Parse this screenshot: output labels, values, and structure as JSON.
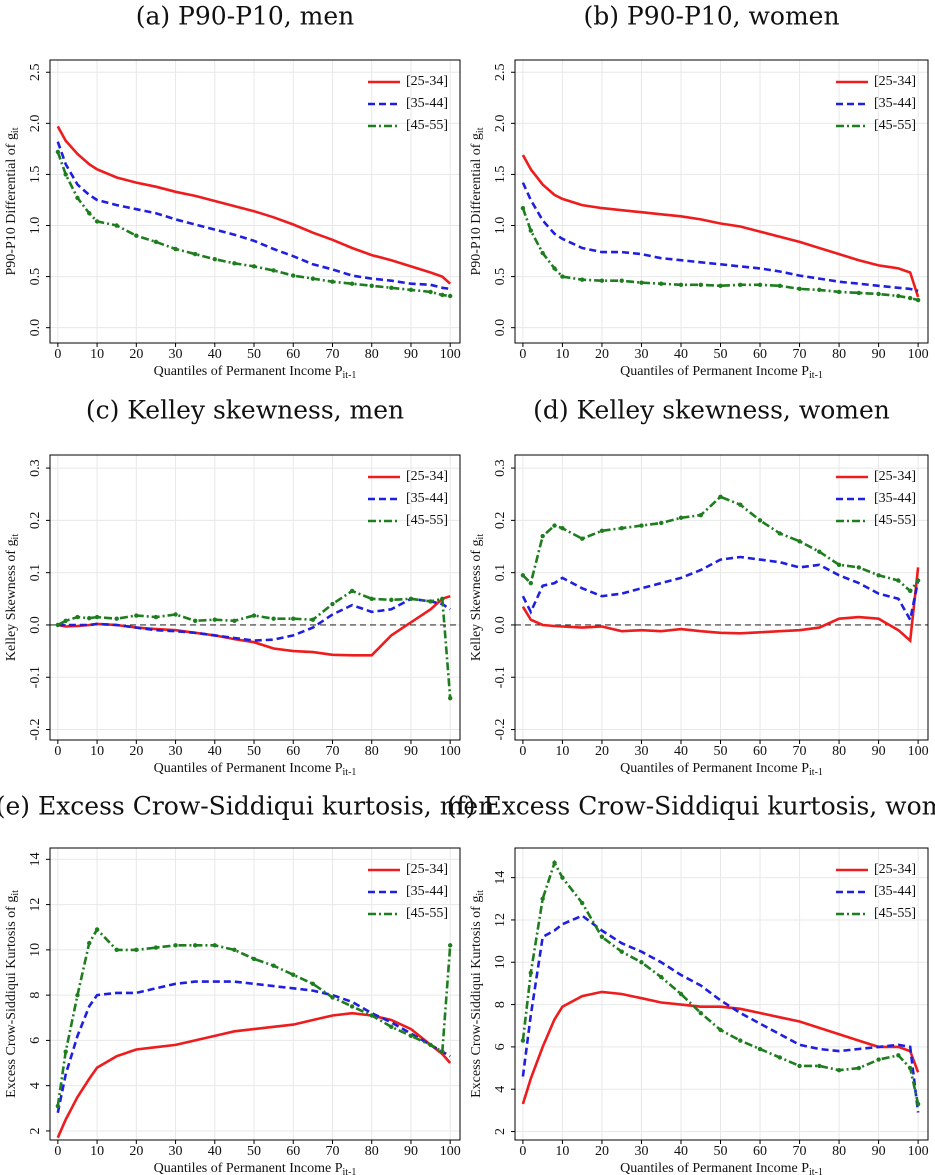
{
  "chart_data": [
    {
      "type": "line",
      "title": "(a) P90-P10, men",
      "xlabel": "Quantiles of Permanent Income P",
      "xlabel_sub": "it-1",
      "ylabel": "P90-P10 Differential of g",
      "ylabel_sub": "it",
      "x": [
        0,
        2,
        5,
        8,
        10,
        15,
        20,
        25,
        30,
        35,
        40,
        45,
        50,
        55,
        60,
        65,
        70,
        75,
        80,
        85,
        90,
        95,
        98,
        100
      ],
      "xlim": [
        -2,
        102.5
      ],
      "xticks": [
        0,
        10,
        20,
        30,
        40,
        50,
        60,
        70,
        80,
        90,
        100
      ],
      "ylim": [
        -0.15,
        2.62
      ],
      "yticks": [
        {
          "value": 0,
          "label": "0.0"
        },
        0.5,
        {
          "value": 1,
          "label": "1.0"
        },
        1.5,
        {
          "value": 2,
          "label": "2.0"
        },
        2.5
      ],
      "grid": true,
      "legend": "top-right",
      "series": [
        {
          "name": "[25-34]",
          "color": "#ee1c1c",
          "line_style": "solid",
          "values": [
            1.97,
            1.83,
            1.7,
            1.6,
            1.55,
            1.47,
            1.42,
            1.38,
            1.33,
            1.29,
            1.24,
            1.19,
            1.14,
            1.08,
            1.01,
            0.93,
            0.86,
            0.78,
            0.71,
            0.66,
            0.6,
            0.54,
            0.5,
            0.43
          ]
        },
        {
          "name": "[35-44]",
          "color": "#1f1fe0",
          "line_style": "dashed",
          "values": [
            1.82,
            1.6,
            1.4,
            1.3,
            1.25,
            1.2,
            1.16,
            1.12,
            1.06,
            1.01,
            0.96,
            0.91,
            0.85,
            0.77,
            0.7,
            0.62,
            0.57,
            0.51,
            0.48,
            0.46,
            0.43,
            0.42,
            0.39,
            0.38
          ]
        },
        {
          "name": "[45-55]",
          "color": "#1e7d1e",
          "line_style": "dashdot",
          "marker": "circle",
          "values": [
            1.72,
            1.5,
            1.27,
            1.12,
            1.04,
            1.0,
            0.9,
            0.84,
            0.77,
            0.72,
            0.67,
            0.63,
            0.6,
            0.56,
            0.51,
            0.48,
            0.45,
            0.43,
            0.41,
            0.39,
            0.37,
            0.35,
            0.32,
            0.31
          ]
        }
      ]
    },
    {
      "type": "line",
      "title": "(b) P90-P10, women",
      "xlabel": "Quantiles of Permanent Income P",
      "xlabel_sub": "it-1",
      "ylabel": "P90-P10 Differential of g",
      "ylabel_sub": "it",
      "x": [
        0,
        2,
        5,
        8,
        10,
        15,
        20,
        25,
        30,
        35,
        40,
        45,
        50,
        55,
        60,
        65,
        70,
        75,
        80,
        85,
        90,
        95,
        98,
        100
      ],
      "xlim": [
        -2,
        102.5
      ],
      "xticks": [
        0,
        10,
        20,
        30,
        40,
        50,
        60,
        70,
        80,
        90,
        100
      ],
      "ylim": [
        -0.15,
        2.62
      ],
      "yticks": [
        {
          "value": 0,
          "label": "0.0"
        },
        0.5,
        {
          "value": 1,
          "label": "1.0"
        },
        1.5,
        {
          "value": 2,
          "label": "2.0"
        },
        2.5
      ],
      "grid": true,
      "legend": "top-right",
      "series": [
        {
          "name": "[25-34]",
          "color": "#ee1c1c",
          "line_style": "solid",
          "values": [
            1.69,
            1.55,
            1.4,
            1.3,
            1.26,
            1.2,
            1.17,
            1.15,
            1.13,
            1.11,
            1.09,
            1.06,
            1.02,
            0.99,
            0.94,
            0.89,
            0.84,
            0.78,
            0.72,
            0.66,
            0.61,
            0.58,
            0.54,
            0.3
          ]
        },
        {
          "name": "[35-44]",
          "color": "#1f1fe0",
          "line_style": "dashed",
          "values": [
            1.42,
            1.25,
            1.05,
            0.92,
            0.87,
            0.78,
            0.74,
            0.74,
            0.72,
            0.68,
            0.66,
            0.64,
            0.62,
            0.6,
            0.58,
            0.55,
            0.51,
            0.48,
            0.45,
            0.43,
            0.41,
            0.39,
            0.38,
            0.36
          ]
        },
        {
          "name": "[45-55]",
          "color": "#1e7d1e",
          "line_style": "dashdot",
          "marker": "circle",
          "values": [
            1.17,
            0.95,
            0.73,
            0.58,
            0.5,
            0.47,
            0.46,
            0.46,
            0.44,
            0.43,
            0.42,
            0.42,
            0.41,
            0.42,
            0.42,
            0.41,
            0.38,
            0.37,
            0.35,
            0.34,
            0.33,
            0.31,
            0.29,
            0.27
          ]
        }
      ]
    },
    {
      "type": "line",
      "title": "(c) Kelley skewness, men",
      "xlabel": "Quantiles of Permanent Income P",
      "xlabel_sub": "it-1",
      "ylabel": "Kelley Skewness of g",
      "ylabel_sub": "it",
      "x": [
        0,
        2,
        5,
        8,
        10,
        15,
        20,
        25,
        30,
        35,
        40,
        45,
        50,
        55,
        60,
        65,
        70,
        75,
        80,
        85,
        90,
        95,
        98,
        100
      ],
      "xlim": [
        -2,
        102.5
      ],
      "xticks": [
        0,
        10,
        20,
        30,
        40,
        50,
        60,
        70,
        80,
        90,
        100
      ],
      "ylim": [
        -0.22,
        0.325
      ],
      "yticks": [
        -0.2,
        -0.1,
        {
          "value": 0,
          "label": "0.0"
        },
        0.1,
        0.2,
        0.3
      ],
      "grid": true,
      "legend": "top-right",
      "reference_line": 0,
      "series": [
        {
          "name": "[25-34]",
          "color": "#ee1c1c",
          "line_style": "solid",
          "values": [
            0,
            -0.003,
            -0.002,
            0,
            0.002,
            0,
            -0.005,
            -0.008,
            -0.01,
            -0.015,
            -0.02,
            -0.027,
            -0.033,
            -0.045,
            -0.05,
            -0.052,
            -0.057,
            -0.058,
            -0.058,
            -0.02,
            0.005,
            0.03,
            0.05,
            0.055
          ]
        },
        {
          "name": "[35-44]",
          "color": "#1f1fe0",
          "line_style": "dashed",
          "values": [
            0,
            0,
            0,
            0,
            0.002,
            0,
            -0.005,
            -0.01,
            -0.012,
            -0.015,
            -0.02,
            -0.025,
            -0.03,
            -0.028,
            -0.02,
            -0.005,
            0.02,
            0.038,
            0.025,
            0.03,
            0.05,
            0.045,
            0.04,
            0.03
          ]
        },
        {
          "name": "[45-55]",
          "color": "#1e7d1e",
          "line_style": "dashdot",
          "marker": "circle",
          "values": [
            0,
            0.008,
            0.015,
            0.013,
            0.015,
            0.012,
            0.018,
            0.015,
            0.02,
            0.008,
            0.01,
            0.008,
            0.018,
            0.012,
            0.012,
            0.01,
            0.04,
            0.065,
            0.05,
            0.048,
            0.05,
            0.045,
            0.05,
            -0.14
          ]
        }
      ]
    },
    {
      "type": "line",
      "title": "(d) Kelley skewness, women",
      "xlabel": "Quantiles of Permanent Income P",
      "xlabel_sub": "it-1",
      "ylabel": "Kelley Skewness of g",
      "ylabel_sub": "it",
      "x": [
        0,
        2,
        5,
        8,
        10,
        15,
        20,
        25,
        30,
        35,
        40,
        45,
        50,
        55,
        60,
        65,
        70,
        75,
        80,
        85,
        90,
        95,
        98,
        100
      ],
      "xlim": [
        -2,
        102.5
      ],
      "xticks": [
        0,
        10,
        20,
        30,
        40,
        50,
        60,
        70,
        80,
        90,
        100
      ],
      "ylim": [
        -0.22,
        0.325
      ],
      "yticks": [
        -0.2,
        -0.1,
        {
          "value": 0,
          "label": "0.0"
        },
        0.1,
        0.2,
        0.3
      ],
      "grid": true,
      "legend": "top-right",
      "reference_line": 0,
      "series": [
        {
          "name": "[25-34]",
          "color": "#ee1c1c",
          "line_style": "solid",
          "values": [
            0.035,
            0.01,
            0,
            -0.002,
            -0.003,
            -0.005,
            -0.003,
            -0.012,
            -0.01,
            -0.012,
            -0.008,
            -0.012,
            -0.015,
            -0.016,
            -0.014,
            -0.012,
            -0.01,
            -0.005,
            0.012,
            0.015,
            0.012,
            -0.01,
            -0.03,
            0.11
          ]
        },
        {
          "name": "[35-44]",
          "color": "#1f1fe0",
          "line_style": "dashed",
          "values": [
            0.055,
            0.025,
            0.075,
            0.08,
            0.09,
            0.07,
            0.055,
            0.06,
            0.07,
            0.08,
            0.09,
            0.105,
            0.125,
            0.13,
            0.125,
            0.12,
            0.11,
            0.115,
            0.095,
            0.08,
            0.06,
            0.05,
            0.01,
            0.085
          ]
        },
        {
          "name": "[45-55]",
          "color": "#1e7d1e",
          "line_style": "dashdot",
          "marker": "circle",
          "values": [
            0.095,
            0.08,
            0.17,
            0.19,
            0.185,
            0.165,
            0.18,
            0.185,
            0.19,
            0.195,
            0.205,
            0.21,
            0.245,
            0.23,
            0.2,
            0.175,
            0.16,
            0.14,
            0.115,
            0.11,
            0.095,
            0.085,
            0.065,
            0.085
          ]
        }
      ]
    },
    {
      "type": "line",
      "title": "(e) Excess Crow-Siddiqui kurtosis, men",
      "xlabel": "Quantiles of Permanent Income P",
      "xlabel_sub": "it-1",
      "ylabel": "Excess Crow-Siddiqui Kurtosis of g",
      "ylabel_sub": "it",
      "x": [
        0,
        2,
        5,
        8,
        10,
        15,
        20,
        25,
        30,
        35,
        40,
        45,
        50,
        55,
        60,
        65,
        70,
        75,
        80,
        85,
        90,
        95,
        98,
        100
      ],
      "xlim": [
        -2,
        102.5
      ],
      "xticks": [
        0,
        10,
        20,
        30,
        40,
        50,
        60,
        70,
        80,
        90,
        100
      ],
      "ylim": [
        1.6,
        14.5
      ],
      "yticks": [
        2,
        4,
        6,
        8,
        10,
        12,
        14
      ],
      "grid": true,
      "legend": "top-right",
      "series": [
        {
          "name": "[25-34]",
          "color": "#ee1c1c",
          "line_style": "solid",
          "values": [
            1.7,
            2.5,
            3.5,
            4.3,
            4.8,
            5.3,
            5.6,
            5.7,
            5.8,
            6.0,
            6.2,
            6.4,
            6.5,
            6.6,
            6.7,
            6.9,
            7.1,
            7.2,
            7.1,
            6.9,
            6.5,
            5.8,
            5.4,
            5.0
          ]
        },
        {
          "name": "[35-44]",
          "color": "#1f1fe0",
          "line_style": "dashed",
          "values": [
            2.8,
            4.5,
            6.2,
            7.5,
            8.0,
            8.1,
            8.1,
            8.3,
            8.5,
            8.6,
            8.6,
            8.6,
            8.5,
            8.4,
            8.3,
            8.2,
            8.0,
            7.7,
            7.2,
            6.8,
            6.3,
            5.8,
            5.5,
            5.3
          ]
        },
        {
          "name": "[45-55]",
          "color": "#1e7d1e",
          "line_style": "dashdot",
          "marker": "circle",
          "values": [
            3.1,
            5.5,
            8.0,
            10.3,
            10.9,
            10.0,
            10.0,
            10.1,
            10.2,
            10.2,
            10.2,
            10.0,
            9.6,
            9.3,
            8.9,
            8.5,
            7.9,
            7.5,
            7.1,
            6.6,
            6.2,
            5.8,
            5.5,
            10.2
          ]
        }
      ]
    },
    {
      "type": "line",
      "title": "(f) Excess Crow-Siddiqui kurtosis, women",
      "xlabel": "Quantiles of Permanent Income P",
      "xlabel_sub": "it-1",
      "ylabel": "Excess Crow-Siddiqui Kurtosis of g",
      "ylabel_sub": "it",
      "x": [
        0,
        2,
        5,
        8,
        10,
        15,
        20,
        25,
        30,
        35,
        40,
        45,
        50,
        55,
        60,
        65,
        70,
        75,
        80,
        85,
        90,
        95,
        98,
        100
      ],
      "xlim": [
        -2,
        102.5
      ],
      "xticks": [
        0,
        10,
        20,
        30,
        40,
        50,
        60,
        70,
        80,
        90,
        100
      ],
      "ylim": [
        1.6,
        15.4
      ],
      "yticks": [
        2,
        4,
        6,
        8,
        10,
        12,
        14
      ],
      "grid": true,
      "legend": "top-right",
      "series": [
        {
          "name": "[25-34]",
          "color": "#ee1c1c",
          "line_style": "solid",
          "values": [
            3.3,
            4.5,
            6.0,
            7.3,
            7.9,
            8.4,
            8.6,
            8.5,
            8.3,
            8.1,
            8.0,
            7.9,
            7.9,
            7.8,
            7.6,
            7.4,
            7.2,
            6.9,
            6.6,
            6.3,
            6.0,
            6.0,
            5.8,
            4.8
          ]
        },
        {
          "name": "[35-44]",
          "color": "#1f1fe0",
          "line_style": "dashed",
          "values": [
            4.6,
            7.5,
            11.2,
            11.5,
            11.8,
            12.2,
            11.5,
            10.9,
            10.5,
            10.0,
            9.4,
            8.9,
            8.2,
            7.6,
            7.1,
            6.6,
            6.1,
            5.9,
            5.8,
            5.9,
            6.0,
            6.1,
            6.0,
            2.9
          ]
        },
        {
          "name": "[45-55]",
          "color": "#1e7d1e",
          "line_style": "dashdot",
          "marker": "circle",
          "values": [
            6.3,
            9.5,
            13.0,
            14.7,
            14.0,
            12.8,
            11.2,
            10.5,
            10.0,
            9.3,
            8.5,
            7.6,
            6.8,
            6.3,
            5.9,
            5.5,
            5.1,
            5.1,
            4.9,
            5.0,
            5.4,
            5.6,
            5.0,
            3.3
          ]
        }
      ]
    }
  ]
}
